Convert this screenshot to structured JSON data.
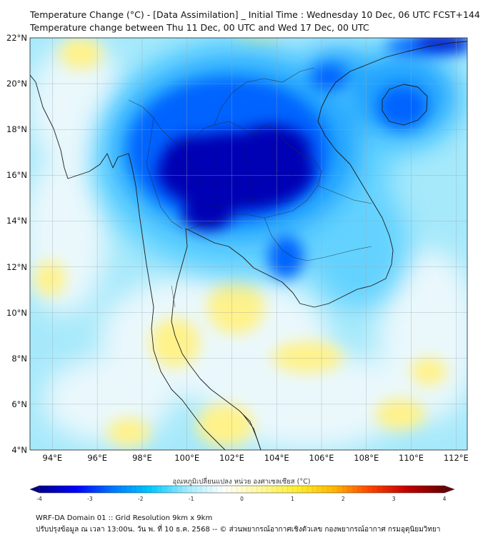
{
  "title_line1": "Temperature Change (°C) - [Data Assimilation] _ Initial Time : Wednesday 10 Dec, 06 UTC FCST+144",
  "title_line2": "Temperature change between Thu 11 Dec, 00 UTC and Wed 17 Dec, 00 UTC",
  "lat_labels": [
    "22°N",
    "20°N",
    "18°N",
    "16°N",
    "14°N",
    "12°N",
    "10°N",
    "8°N",
    "6°N",
    "4°N"
  ],
  "lon_labels": [
    "94°E",
    "96°E",
    "98°E",
    "100°E",
    "102°E",
    "104°E",
    "106°E",
    "108°E",
    "110°E",
    "112°E"
  ],
  "colorbar": {
    "title": "อุณหภูมิเปลี่ยนแปลง หน่วย องศาเซลเซียส (°C)",
    "ticks": [
      "-4",
      "-3",
      "-2",
      "-1",
      "0",
      "1",
      "2",
      "3",
      "4"
    ],
    "min": -4,
    "max": 4,
    "colors": [
      "#00008b",
      "#0000ff",
      "#0078ff",
      "#00c8ff",
      "#a0ecff",
      "#ffffff",
      "#fff8a0",
      "#ffee30",
      "#ffb800",
      "#ff4000",
      "#c00000",
      "#6b0000"
    ]
  },
  "footer_line1": "WRF-DA Domain 01 :: Grid Resolution 9km x 9km",
  "footer_line2": "ปรับปรุงข้อมูล ณ เวลา 13:00น. วัน พ. ที่ 10 ธ.ค. 2568 -- © ส่วนพยากรณ์อากาศเชิงตัวเลข กองพยากรณ์อากาศ กรมอุตุนิยมวิทยา",
  "map_colors": {
    "base": "#a6e9fb",
    "deep_blue": "#0000b4",
    "blue": "#0064ff",
    "mid_blue": "#1ea0ff",
    "light_blue": "#64d2ff",
    "pale": "#eaf8fc",
    "yellow": "#fff28a",
    "bright_yellow": "#ffea4a"
  }
}
